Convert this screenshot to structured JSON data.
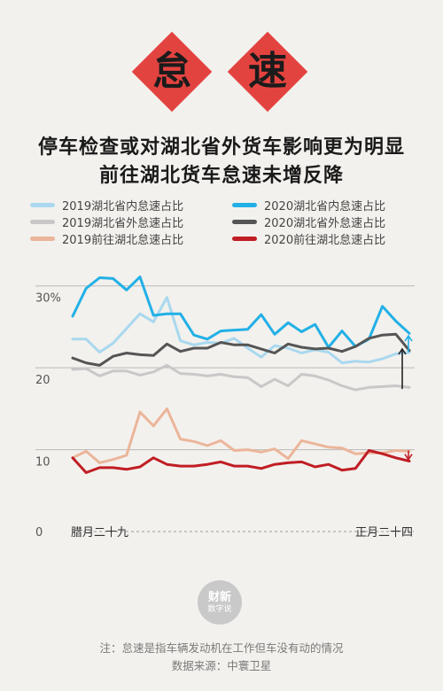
{
  "badges": [
    {
      "char": "怠",
      "color": "#e3433f"
    },
    {
      "char": "速",
      "color": "#e3433f"
    }
  ],
  "title_lines": [
    "停车检查或对湖北省外货车影响更为明显",
    "前往湖北货车怠速未增反降"
  ],
  "logo": {
    "line1": "财新",
    "line2": "数字说"
  },
  "footnote": "注：怠速是指车辆发动机在工作但车没有动的情况",
  "source": "数据来源：中寰卫星",
  "chart_data": {
    "type": "line",
    "ylim": [
      0,
      33
    ],
    "y_ticks": [
      {
        "value": 0,
        "label": "0"
      },
      {
        "value": 10,
        "label": "10"
      },
      {
        "value": 20,
        "label": "20"
      },
      {
        "value": 30,
        "label": "30%"
      }
    ],
    "x_start_label": "腊月二十九",
    "x_end_label": "正月二十四",
    "legend_placement": "top",
    "series": [
      {
        "name": "2019湖北省内怠速占比",
        "color": "#a9d8ef",
        "values": [
          23.5,
          23.5,
          21.9,
          23.0,
          24.8,
          26.6,
          25.6,
          28.6,
          23.3,
          22.8,
          23.1,
          23.0,
          23.6,
          22.4,
          21.3,
          22.7,
          22.4,
          21.8,
          22.2,
          21.9,
          20.6,
          20.8,
          20.7,
          21.1,
          21.7,
          21.9
        ]
      },
      {
        "name": "2020湖北省内怠速占比",
        "color": "#22b0e6",
        "values": [
          26.3,
          29.7,
          31.0,
          30.9,
          29.5,
          31.1,
          26.4,
          26.6,
          26.6,
          24.0,
          23.5,
          24.5,
          24.6,
          24.7,
          26.5,
          24.1,
          25.5,
          24.4,
          25.3,
          22.5,
          24.5,
          22.6,
          23.5,
          27.5,
          25.7,
          24.2
        ]
      },
      {
        "name": "2019湖北省外怠速占比",
        "color": "#c8c8c8",
        "values": [
          19.8,
          19.9,
          19.0,
          19.6,
          19.6,
          19.1,
          19.5,
          20.3,
          19.3,
          19.2,
          19.0,
          19.2,
          18.9,
          18.8,
          17.7,
          18.6,
          17.8,
          19.2,
          19.0,
          18.5,
          17.8,
          17.3,
          17.6,
          17.7,
          17.8,
          17.6
        ]
      },
      {
        "name": "2020湖北省外怠速占比",
        "color": "#555555",
        "values": [
          21.2,
          20.6,
          20.3,
          21.4,
          21.8,
          21.6,
          21.5,
          22.9,
          22.0,
          22.4,
          22.4,
          23.1,
          22.8,
          22.8,
          22.3,
          21.8,
          22.9,
          22.5,
          22.3,
          22.4,
          22.0,
          22.6,
          23.6,
          24.0,
          24.1,
          22.1
        ]
      },
      {
        "name": "2019前往湖北怠速占比",
        "color": "#ebb59a",
        "values": [
          9.0,
          9.8,
          8.4,
          8.8,
          9.3,
          14.6,
          12.9,
          15.0,
          11.3,
          11.0,
          10.5,
          11.1,
          9.9,
          10.0,
          9.7,
          10.1,
          8.9,
          11.1,
          10.7,
          10.3,
          10.2,
          9.5,
          9.6,
          9.6,
          9.9,
          9.8
        ]
      },
      {
        "name": "2020前往湖北怠速占比",
        "color": "#c01d24",
        "values": [
          9.0,
          7.2,
          7.8,
          7.8,
          7.6,
          7.9,
          9.0,
          8.2,
          8.0,
          8.0,
          8.2,
          8.5,
          8.0,
          8.0,
          7.7,
          8.2,
          8.4,
          8.5,
          7.9,
          8.2,
          7.5,
          7.7,
          9.9,
          9.5,
          9.0,
          8.6
        ]
      }
    ],
    "annotations": [
      {
        "type": "arrow-up",
        "color": "#222222",
        "from": 17.4,
        "to": 22.3
      },
      {
        "type": "arrow-up",
        "color": "#22b0e6",
        "from": 21.9,
        "to": 23.9
      },
      {
        "type": "arrow-down",
        "color": "#c01d24",
        "from": 9.9,
        "to": 8.8
      }
    ]
  }
}
